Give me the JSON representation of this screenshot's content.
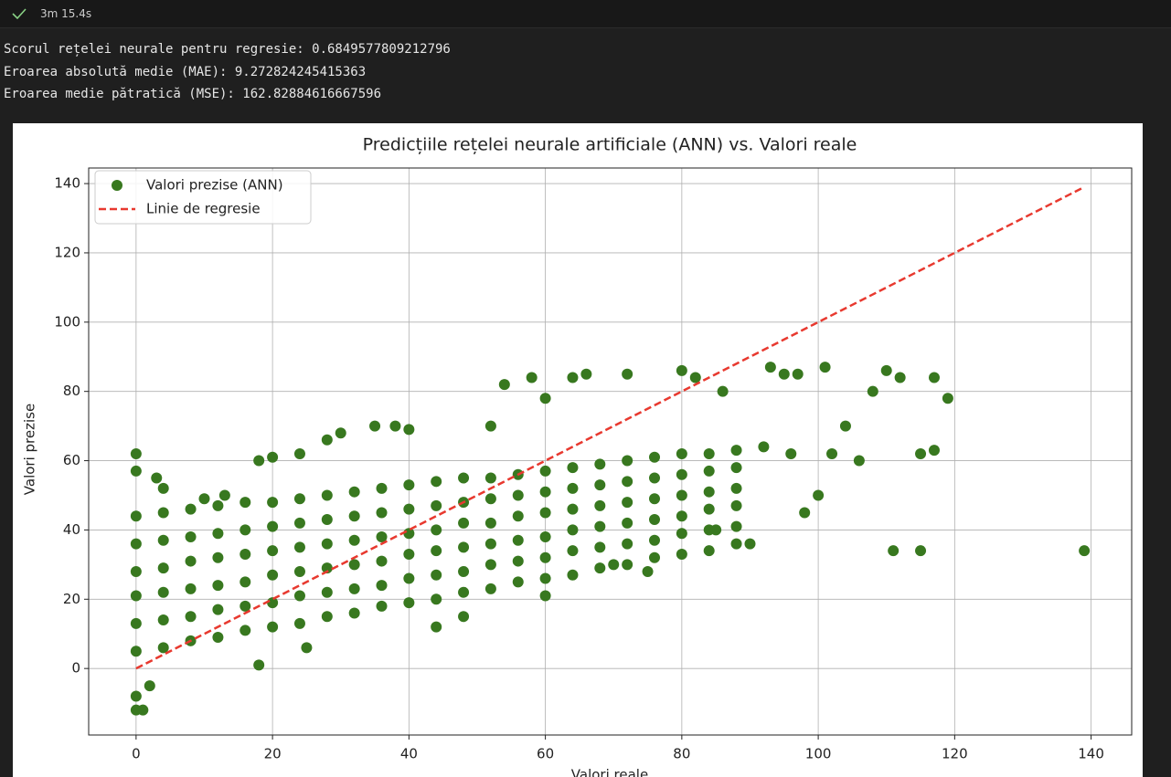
{
  "cell": {
    "status": "3m 15.4s"
  },
  "output": {
    "lines": [
      "Scorul rețelei neurale pentru regresie: 0.6849577809212796",
      "Eroarea absolută medie (MAE): 9.272824245415363",
      "Eroarea medie pătratică (MSE): 162.82884616667596"
    ]
  },
  "chart_data": {
    "type": "scatter",
    "title": "Predicțiile rețelei neurale artificiale (ANN) vs. Valori reale",
    "x_label": "Valori reale",
    "y_label": "Valori prezise",
    "xlim": [
      -6.95,
      145.95
    ],
    "ylim": [
      -19.2,
      144.5
    ],
    "xticks": [
      0,
      20,
      40,
      60,
      80,
      100,
      120,
      140
    ],
    "yticks": [
      0,
      20,
      40,
      60,
      80,
      100,
      120,
      140
    ],
    "grid": true,
    "legend": "upper left",
    "series": [
      {
        "name": "Valori prezise (ANN)",
        "type": "scatter",
        "color": "#38781f",
        "x": [
          0,
          0,
          0,
          0,
          0,
          0,
          4,
          4,
          4,
          4,
          4,
          4,
          8,
          8,
          8,
          8,
          8,
          8,
          12,
          12,
          12,
          12,
          12,
          12,
          16,
          16,
          16,
          16,
          16,
          16,
          20,
          20,
          20,
          20,
          20,
          20,
          24,
          24,
          24,
          24,
          24,
          24,
          28,
          28,
          28,
          28,
          28,
          28,
          32,
          32,
          32,
          32,
          32,
          32,
          36,
          36,
          36,
          36,
          36,
          36,
          40,
          40,
          40,
          40,
          40,
          40,
          44,
          44,
          44,
          44,
          44,
          44,
          48,
          48,
          48,
          48,
          48,
          48,
          52,
          52,
          52,
          52,
          52,
          52,
          56,
          56,
          56,
          56,
          56,
          56,
          60,
          60,
          60,
          60,
          60,
          60,
          64,
          64,
          64,
          64,
          64,
          64,
          68,
          68,
          68,
          68,
          68,
          68,
          72,
          72,
          72,
          72,
          72,
          72,
          76,
          76,
          76,
          76,
          76,
          76,
          80,
          80,
          80,
          80,
          80,
          80,
          84,
          84,
          84,
          84,
          84,
          84,
          88,
          88,
          88,
          88,
          88,
          88,
          0,
          0,
          0,
          1,
          0,
          2,
          4,
          3,
          10,
          13,
          18,
          18,
          20,
          24,
          25,
          28,
          30,
          35,
          38,
          40,
          44,
          48,
          52,
          54,
          58,
          60,
          60,
          64,
          66,
          72,
          80,
          82,
          86,
          90,
          93,
          95,
          97,
          98,
          100,
          101,
          104,
          106,
          108,
          110,
          111,
          112,
          115,
          115,
          117,
          117,
          119,
          139,
          75,
          85,
          70,
          96,
          92,
          102
        ],
        "values": [
          5,
          13,
          21,
          28,
          36,
          44,
          6,
          14,
          22,
          29,
          37,
          45,
          8,
          15,
          23,
          31,
          38,
          46,
          9,
          17,
          24,
          32,
          39,
          47,
          11,
          18,
          25,
          33,
          40,
          48,
          12,
          19,
          27,
          34,
          41,
          48,
          13,
          21,
          28,
          35,
          42,
          49,
          15,
          22,
          29,
          36,
          43,
          50,
          16,
          23,
          30,
          37,
          44,
          51,
          18,
          24,
          31,
          38,
          45,
          52,
          19,
          26,
          33,
          39,
          46,
          53,
          20,
          27,
          34,
          40,
          47,
          54,
          22,
          28,
          35,
          42,
          48,
          55,
          23,
          30,
          36,
          42,
          49,
          55,
          25,
          31,
          37,
          44,
          50,
          56,
          26,
          32,
          38,
          45,
          51,
          57,
          27,
          34,
          40,
          46,
          52,
          58,
          29,
          35,
          41,
          47,
          53,
          59,
          30,
          36,
          42,
          48,
          54,
          60,
          32,
          37,
          43,
          49,
          55,
          61,
          33,
          39,
          44,
          50,
          56,
          62,
          34,
          40,
          46,
          51,
          57,
          62,
          36,
          41,
          47,
          52,
          58,
          63,
          62,
          57,
          -12,
          -12,
          -8,
          -5,
          52,
          55,
          49,
          50,
          1,
          60,
          61,
          62,
          6,
          66,
          68,
          70,
          70,
          69,
          12,
          15,
          70,
          82,
          84,
          21,
          78,
          84,
          85,
          85,
          86,
          84,
          80,
          36,
          87,
          85,
          85,
          45,
          50,
          87,
          70,
          60,
          80,
          86,
          34,
          84,
          34,
          62,
          84,
          63,
          78,
          34,
          28,
          40,
          30,
          62,
          64,
          62
        ]
      },
      {
        "name": "Linie de regresie",
        "type": "line",
        "color": "#e8392f",
        "dashed": true,
        "x": [
          0,
          139
        ],
        "values": [
          0,
          139
        ]
      }
    ]
  }
}
